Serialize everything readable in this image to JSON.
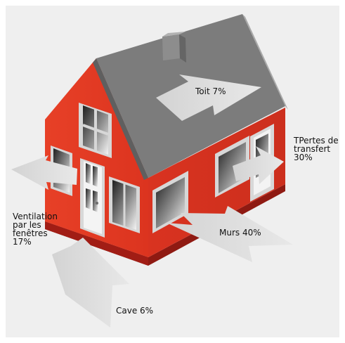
{
  "labels": {
    "roof": "Toit  7%",
    "transfer": "TPertes de\ntransfert\n30%",
    "walls": "Murs 40%",
    "ventilation": "Ventilation\npar les\nfenêtres\n17%",
    "cellar": "Cave 6%"
  },
  "colors": {
    "background": "#efefef",
    "roof": "#7b7b7b",
    "wall_front": "#e53b25",
    "wall_side": "#d83320",
    "foundation": "#8f1a12",
    "arrow": "#dddddd",
    "window_frame": "#d7d7d7"
  },
  "icons": {
    "house": "house-illustration",
    "arrows": "heat-loss-arrows"
  }
}
